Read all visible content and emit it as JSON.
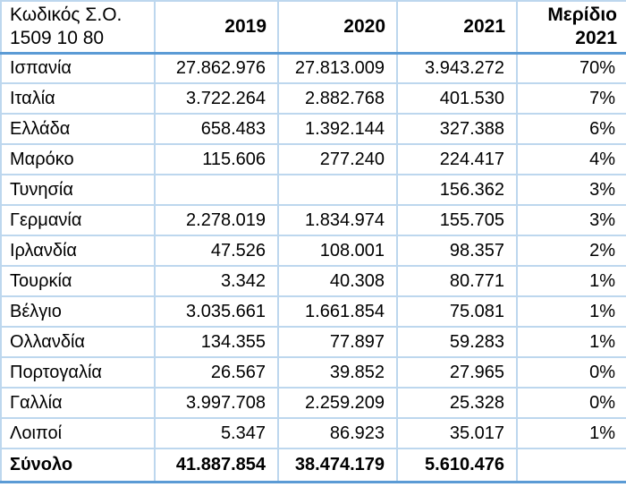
{
  "colors": {
    "grid_border": "#BDD7EE",
    "accent_border": "#5B9BD5",
    "text": "#000000",
    "background": "#FFFFFF"
  },
  "table": {
    "code_header": "Κωδικός Σ.Ο. 1509 10 80",
    "columns": [
      "2019",
      "2020",
      "2021",
      "Μερίδιο 2021"
    ],
    "rows": [
      {
        "country": "Ισπανία",
        "y2019": "27.862.976",
        "y2020": "27.813.009",
        "y2021": "3.943.272",
        "share": "70%"
      },
      {
        "country": "Ιταλία",
        "y2019": "3.722.264",
        "y2020": "2.882.768",
        "y2021": "401.530",
        "share": "7%"
      },
      {
        "country": "Ελλάδα",
        "y2019": "658.483",
        "y2020": "1.392.144",
        "y2021": "327.388",
        "share": "6%"
      },
      {
        "country": "Μαρόκο",
        "y2019": "115.606",
        "y2020": "277.240",
        "y2021": "224.417",
        "share": "4%"
      },
      {
        "country": "Τυνησία",
        "y2019": "",
        "y2020": "",
        "y2021": "156.362",
        "share": "3%"
      },
      {
        "country": "Γερμανία",
        "y2019": "2.278.019",
        "y2020": "1.834.974",
        "y2021": "155.705",
        "share": "3%"
      },
      {
        "country": "Ιρλανδία",
        "y2019": "47.526",
        "y2020": "108.001",
        "y2021": "98.357",
        "share": "2%"
      },
      {
        "country": "Τουρκία",
        "y2019": "3.342",
        "y2020": "40.308",
        "y2021": "80.771",
        "share": "1%"
      },
      {
        "country": "Βέλγιο",
        "y2019": "3.035.661",
        "y2020": "1.661.854",
        "y2021": "75.081",
        "share": "1%"
      },
      {
        "country": "Ολλανδία",
        "y2019": "134.355",
        "y2020": "77.897",
        "y2021": "59.283",
        "share": "1%"
      },
      {
        "country": "Πορτογαλία",
        "y2019": "26.567",
        "y2020": "39.852",
        "y2021": "27.965",
        "share": "0%"
      },
      {
        "country": "Γαλλία",
        "y2019": "3.997.708",
        "y2020": "2.259.209",
        "y2021": "25.328",
        "share": "0%"
      },
      {
        "country": "Λοιποί",
        "y2019": "5.347",
        "y2020": "86.923",
        "y2021": "35.017",
        "share": "1%"
      }
    ],
    "total": {
      "label": "Σύνολο",
      "y2019": "41.887.854",
      "y2020": "38.474.179",
      "y2021": "5.610.476",
      "share": ""
    }
  },
  "chart_data": {
    "type": "table",
    "title": "Κωδικός Σ.Ο. 1509 10 80",
    "columns": [
      "Κωδικός Σ.Ο. 1509 10 80",
      "2019",
      "2020",
      "2021",
      "Μερίδιο 2021"
    ],
    "rows": [
      [
        "Ισπανία",
        "27.862.976",
        "27.813.009",
        "3.943.272",
        "70%"
      ],
      [
        "Ιταλία",
        "3.722.264",
        "2.882.768",
        "401.530",
        "7%"
      ],
      [
        "Ελλάδα",
        "658.483",
        "1.392.144",
        "327.388",
        "6%"
      ],
      [
        "Μαρόκο",
        "115.606",
        "277.240",
        "224.417",
        "4%"
      ],
      [
        "Τυνησία",
        "",
        "",
        "156.362",
        "3%"
      ],
      [
        "Γερμανία",
        "2.278.019",
        "1.834.974",
        "155.705",
        "3%"
      ],
      [
        "Ιρλανδία",
        "47.526",
        "108.001",
        "98.357",
        "2%"
      ],
      [
        "Τουρκία",
        "3.342",
        "40.308",
        "80.771",
        "1%"
      ],
      [
        "Βέλγιο",
        "3.035.661",
        "1.661.854",
        "75.081",
        "1%"
      ],
      [
        "Ολλανδία",
        "134.355",
        "77.897",
        "59.283",
        "1%"
      ],
      [
        "Πορτογαλία",
        "26.567",
        "39.852",
        "27.965",
        "0%"
      ],
      [
        "Γαλλία",
        "3.997.708",
        "2.259.209",
        "25.328",
        "0%"
      ],
      [
        "Λοιποί",
        "5.347",
        "86.923",
        "35.017",
        "1%"
      ],
      [
        "Σύνολο",
        "41.887.854",
        "38.474.179",
        "5.610.476",
        ""
      ]
    ]
  }
}
